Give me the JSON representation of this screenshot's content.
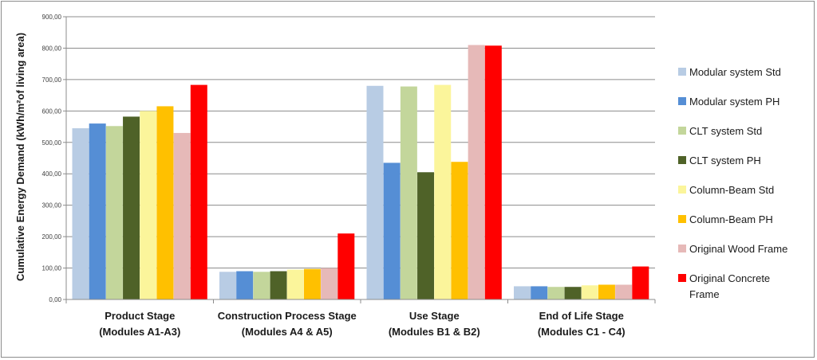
{
  "chart_data": {
    "type": "bar",
    "title": "",
    "ylabel": "Cumulative Energy Demand (kWh/m²of living area)",
    "xlabel": "",
    "ylim": [
      0,
      900
    ],
    "yticks": [
      "0,00",
      "100,00",
      "200,00",
      "300,00",
      "400,00",
      "500,00",
      "600,00",
      "700,00",
      "800,00",
      "900,00"
    ],
    "grid": true,
    "legend_position": "right",
    "categories": [
      [
        "Product Stage",
        "(Modules A1-A3)"
      ],
      [
        "Construction Process Stage",
        "(Modules A4 & A5)"
      ],
      [
        "Use Stage",
        "(Modules B1 & B2)"
      ],
      [
        "End of Life Stage",
        "(Modules C1 - C4)"
      ]
    ],
    "series": [
      {
        "name": "Modular system Std",
        "lines": [
          "Modular system Std"
        ],
        "color": "#b8cce4",
        "values": [
          545,
          88,
          680,
          42
        ]
      },
      {
        "name": "Modular system PH",
        "lines": [
          "Modular system PH"
        ],
        "color": "#558ed5",
        "values": [
          560,
          90,
          435,
          42
        ]
      },
      {
        "name": "CLT system Std",
        "lines": [
          "CLT system Std"
        ],
        "color": "#c3d69b",
        "values": [
          552,
          88,
          678,
          40
        ]
      },
      {
        "name": "CLT system PH",
        "lines": [
          "CLT system PH"
        ],
        "color": "#4f6228",
        "values": [
          582,
          90,
          405,
          40
        ]
      },
      {
        "name": "Column-Beam Std",
        "lines": [
          "Column-Beam Std"
        ],
        "color": "#fbf59b",
        "values": [
          600,
          95,
          683,
          45
        ]
      },
      {
        "name": "Column-Beam PH",
        "lines": [
          "Column-Beam PH"
        ],
        "color": "#ffc000",
        "values": [
          615,
          97,
          438,
          47
        ]
      },
      {
        "name": "Original Wood Frame",
        "lines": [
          "Original Wood Frame"
        ],
        "color": "#e6b9b8",
        "values": [
          530,
          100,
          810,
          47
        ]
      },
      {
        "name": "Original Concrete Frame",
        "lines": [
          "Original Concrete",
          "Frame"
        ],
        "color": "#ff0000",
        "values": [
          683,
          210,
          808,
          105
        ]
      }
    ]
  }
}
